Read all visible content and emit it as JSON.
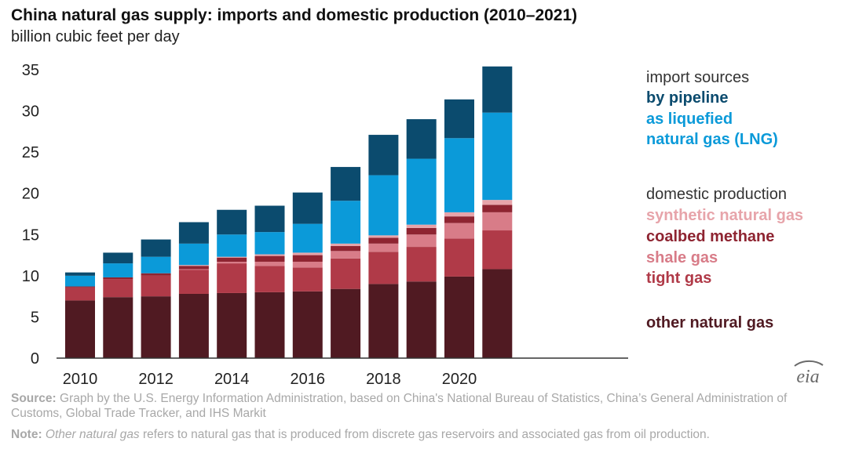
{
  "colors": {
    "pipeline": "#0b4b6e",
    "lng": "#0b9ad9",
    "synthetic": "#e7a4aa",
    "coalbed": "#8e2431",
    "shale": "#d87c88",
    "tight": "#b03a48",
    "other": "#501a22"
  },
  "chart_data": {
    "type": "bar",
    "stacked": true,
    "title": "China natural gas supply: imports and domestic production (2010–2021)",
    "ylabel": "billion cubic feet per day",
    "ylim": [
      0,
      35
    ],
    "yticks": [
      "0",
      "5",
      "10",
      "15",
      "20",
      "25",
      "30",
      "35"
    ],
    "categories": [
      "2010",
      "2011",
      "2012",
      "2013",
      "2014",
      "2015",
      "2016",
      "2017",
      "2018",
      "2019",
      "2020",
      "2021"
    ],
    "xtick_labels": [
      "2010",
      "2012",
      "2014",
      "2016",
      "2018",
      "2020"
    ],
    "series": [
      {
        "name": "other natural gas",
        "key": "other",
        "values": [
          7.0,
          7.4,
          7.5,
          7.8,
          7.9,
          8.0,
          8.1,
          8.4,
          9.0,
          9.3,
          9.9,
          10.8
        ]
      },
      {
        "name": "tight gas",
        "key": "tight",
        "values": [
          1.6,
          2.2,
          2.5,
          2.9,
          3.6,
          3.2,
          2.9,
          3.7,
          3.9,
          4.2,
          4.6,
          4.7
        ]
      },
      {
        "name": "shale gas",
        "key": "shale",
        "values": [
          0.0,
          0.0,
          0.0,
          0.1,
          0.2,
          0.5,
          0.7,
          0.9,
          1.0,
          1.5,
          1.9,
          2.2
        ]
      },
      {
        "name": "coalbed methane",
        "key": "coalbed",
        "values": [
          0.1,
          0.2,
          0.3,
          0.4,
          0.5,
          0.7,
          0.8,
          0.6,
          0.7,
          0.8,
          0.8,
          0.9
        ]
      },
      {
        "name": "synthetic natural gas",
        "key": "synthetic",
        "values": [
          0.0,
          0.0,
          0.0,
          0.1,
          0.1,
          0.2,
          0.3,
          0.3,
          0.3,
          0.4,
          0.5,
          0.6
        ]
      },
      {
        "name": "as liquefied natural gas (LNG)",
        "key": "lng",
        "values": [
          1.3,
          1.7,
          2.0,
          2.6,
          2.7,
          2.7,
          3.5,
          5.2,
          7.3,
          8.0,
          9.0,
          10.6
        ]
      },
      {
        "name": "by pipeline",
        "key": "pipeline",
        "values": [
          0.4,
          1.3,
          2.1,
          2.6,
          3.0,
          3.2,
          3.8,
          4.1,
          4.9,
          4.8,
          4.7,
          5.6
        ]
      }
    ]
  },
  "legend": {
    "import_heading": "import sources",
    "pipeline": "by pipeline",
    "lng_line1": "as liquefied",
    "lng_line2": "natural gas (LNG)",
    "domestic_heading": "domestic production",
    "synthetic": "synthetic natural gas",
    "coalbed": "coalbed methane",
    "shale": "shale gas",
    "tight": "tight gas",
    "other": "other natural gas"
  },
  "footer": {
    "source_label": "Source:",
    "source_text": " Graph by the U.S. Energy Information Administration, based on China's National Bureau of Statistics, China’s General Administration of Customs, Global Trade Tracker, and IHS Markit",
    "note_label": "Note:",
    "note_italic": "Other natural gas",
    "note_text": " refers to natural gas that is produced from discrete gas reservoirs and associated gas from oil production."
  },
  "logo_text": "eia"
}
